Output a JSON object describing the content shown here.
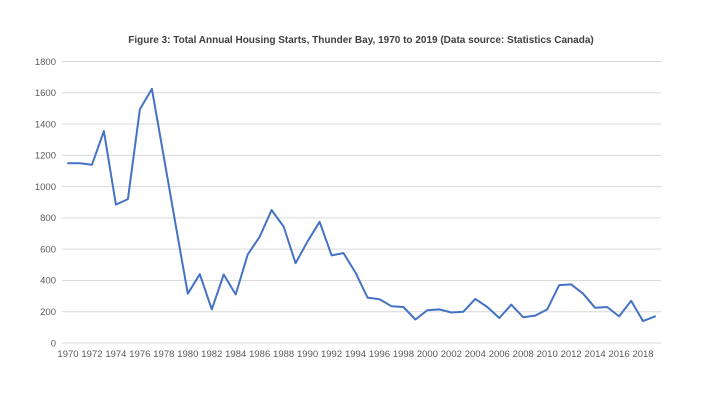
{
  "chart_data": {
    "type": "line",
    "title": "Figure 3: Total Annual Housing Starts, Thunder Bay, 1970 to 2019 (Data source: Statistics Canada)",
    "series_name": "Total annual housing starts",
    "x": [
      1970,
      1971,
      1972,
      1973,
      1974,
      1975,
      1976,
      1977,
      1978,
      1979,
      1980,
      1981,
      1982,
      1983,
      1984,
      1985,
      1986,
      1987,
      1988,
      1989,
      1990,
      1991,
      1992,
      1993,
      1994,
      1995,
      1996,
      1997,
      1998,
      1999,
      2000,
      2001,
      2002,
      2003,
      2004,
      2005,
      2006,
      2007,
      2008,
      2009,
      2010,
      2011,
      2012,
      2013,
      2014,
      2015,
      2016,
      2017,
      2018,
      2019
    ],
    "values": [
      1150,
      1150,
      1140,
      1355,
      885,
      920,
      1495,
      1625,
      1190,
      750,
      315,
      440,
      215,
      438,
      310,
      565,
      680,
      850,
      745,
      510,
      650,
      775,
      560,
      575,
      450,
      290,
      280,
      235,
      230,
      150,
      210,
      215,
      195,
      200,
      282,
      230,
      160,
      245,
      165,
      175,
      215,
      370,
      375,
      315,
      225,
      230,
      170,
      270,
      140,
      170
    ],
    "xlabel": "",
    "ylabel": "",
    "ylim": [
      0,
      1800
    ],
    "ytick_step": 200,
    "ytick_labels": [
      "0",
      "200",
      "400",
      "600",
      "800",
      "1000",
      "1200",
      "1400",
      "1600",
      "1800"
    ],
    "xtick_step": 2,
    "xtick_labels": [
      "1970",
      "1972",
      "1974",
      "1976",
      "1978",
      "1980",
      "1982",
      "1984",
      "1986",
      "1988",
      "1990",
      "1992",
      "1994",
      "1996",
      "1998",
      "2000",
      "2002",
      "2004",
      "2006",
      "2008",
      "2010",
      "2012",
      "2014",
      "2016",
      "2018"
    ],
    "grid": "horizontal",
    "legend": "none",
    "line_color": "#4472C4",
    "gridline_color": "#D9D9D9",
    "axis_label_color": "#595959",
    "title_color": "#404040",
    "background_color": "#FFFFFF"
  }
}
